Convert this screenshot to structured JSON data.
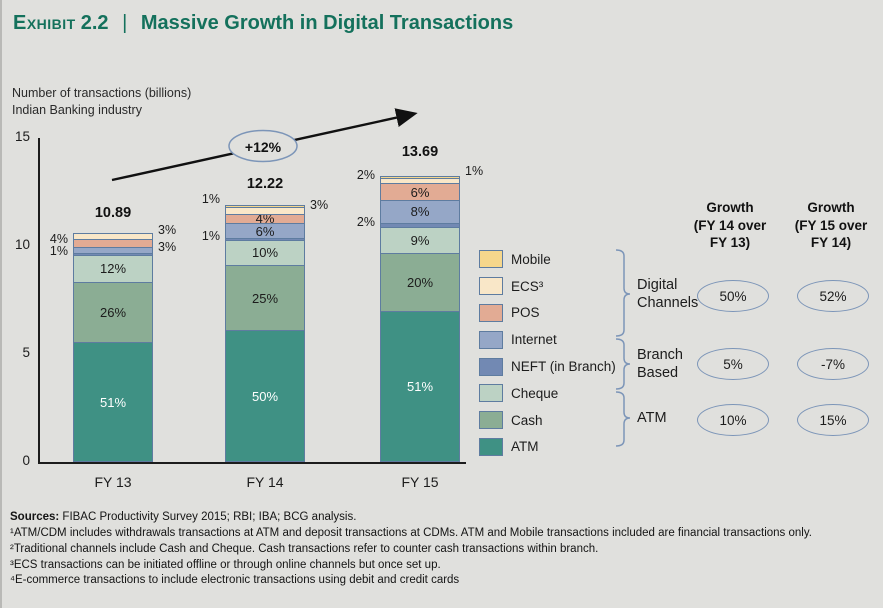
{
  "colors": {
    "background": "#E0E0DD",
    "title_green": "#14715C",
    "bar_border": "#5E7CA0",
    "annotation_stroke": "#7C95B8",
    "axis_black": "#1C1C1C"
  },
  "header": {
    "exhibit_label": "Exhibit",
    "exhibit_number": "2.2",
    "separator": "|",
    "title": "Massive Growth in Digital Transactions"
  },
  "axis_note": {
    "line1": "Number of transactions (billions)",
    "line2": "Indian Banking industry"
  },
  "chart_data": {
    "type": "bar",
    "stacked": true,
    "title": "Massive Growth in Digital Transactions",
    "ylabel": "Number of transactions (billions)",
    "subtitle": "Indian Banking industry",
    "ylim": [
      0,
      15
    ],
    "yticks": [
      15,
      10,
      5,
      0
    ],
    "grid": false,
    "categories": [
      "FY 13",
      "FY 14",
      "FY 15"
    ],
    "totals": [
      10.89,
      12.22,
      13.69
    ],
    "total_labels": [
      "10.89",
      "12.22",
      "13.69"
    ],
    "growth_arrow_label": "+12%",
    "series_bottom_to_top": [
      {
        "name": "ATM",
        "color": "#3F9184",
        "values_pct": [
          51,
          50,
          51
        ],
        "label_pos": [
          "inside",
          "inside",
          "inside"
        ],
        "label_color": "#FFFFFF"
      },
      {
        "name": "Cash",
        "color": "#8BAD94",
        "values_pct": [
          26,
          25,
          20
        ],
        "label_pos": [
          "inside",
          "inside",
          "inside"
        ],
        "label_color": "#1C1C1C"
      },
      {
        "name": "Cheque",
        "color": "#BCD2C4",
        "values_pct": [
          12,
          10,
          9
        ],
        "label_pos": [
          "inside",
          "inside",
          "inside"
        ],
        "label_color": "#1C1C1C"
      },
      {
        "name": "NEFT (in Branch)",
        "color": "#7289B3",
        "values_pct": [
          1,
          1,
          2
        ],
        "label_pos": [
          "left",
          "left",
          "left"
        ],
        "label_color": "#1C1C1C"
      },
      {
        "name": "Internet",
        "color": "#95A7C7",
        "values_pct": [
          3,
          6,
          8
        ],
        "label_pos": [
          "right",
          "inside",
          "inside"
        ],
        "label_color": "#1C1C1C"
      },
      {
        "name": "POS",
        "color": "#E2AB94",
        "values_pct": [
          4,
          4,
          6
        ],
        "label_pos": [
          "left",
          "inside",
          "inside"
        ],
        "label_color": "#1C1C1C"
      },
      {
        "name": "ECS³",
        "color": "#F9E7C8",
        "values_pct": [
          3,
          3,
          2
        ],
        "label_pos": [
          "right",
          "right",
          "left"
        ],
        "label_color": "#1C1C1C"
      },
      {
        "name": "Mobile",
        "color": "#F6D78C",
        "values_pct": [
          0,
          1,
          1
        ],
        "label_pos": [
          "none",
          "left",
          "right"
        ],
        "label_color": "#1C1C1C"
      }
    ]
  },
  "legend": {
    "items": [
      {
        "label": "Mobile",
        "color": "#F6D78C"
      },
      {
        "label": "ECS³",
        "color": "#F9E7C8"
      },
      {
        "label": "POS",
        "color": "#E2AB94"
      },
      {
        "label": "Internet",
        "color": "#95A7C7"
      },
      {
        "label": "NEFT (in Branch)",
        "color": "#7289B3"
      },
      {
        "label": "Cheque",
        "color": "#BCD2C4"
      },
      {
        "label": "Cash",
        "color": "#8BAD94"
      },
      {
        "label": "ATM",
        "color": "#3F9184"
      }
    ]
  },
  "growth_table": {
    "col_headers": [
      [
        "Growth",
        "(FY 14 over",
        "FY 13)"
      ],
      [
        "Growth",
        "(FY 15 over",
        "FY 14)"
      ]
    ],
    "rows": [
      {
        "group_line1": "Digital",
        "group_line2": "Channels",
        "fy14_over_fy13": "50%",
        "fy15_over_fy14": "52%"
      },
      {
        "group_line1": "Branch",
        "group_line2": "Based",
        "fy14_over_fy13": "5%",
        "fy15_over_fy14": "-7%"
      },
      {
        "group_line1": "ATM",
        "group_line2": "",
        "fy14_over_fy13": "10%",
        "fy15_over_fy14": "15%"
      }
    ]
  },
  "footnotes": {
    "sources_label": "Sources:",
    "sources_text": " FIBAC Productivity Survey 2015; RBI; IBA; BCG analysis.",
    "notes": [
      "¹ATM/CDM includes withdrawals transactions at ATM and deposit transactions at CDMs. ATM and Mobile transactions included are financial transactions only.",
      "²Traditional channels include Cash and Cheque. Cash transactions refer to counter cash transactions within branch.",
      "³ECS transactions can be initiated offline or through online channels but once set up.",
      "⁴E-commerce transactions to include electronic transactions using debit and credit cards"
    ]
  }
}
